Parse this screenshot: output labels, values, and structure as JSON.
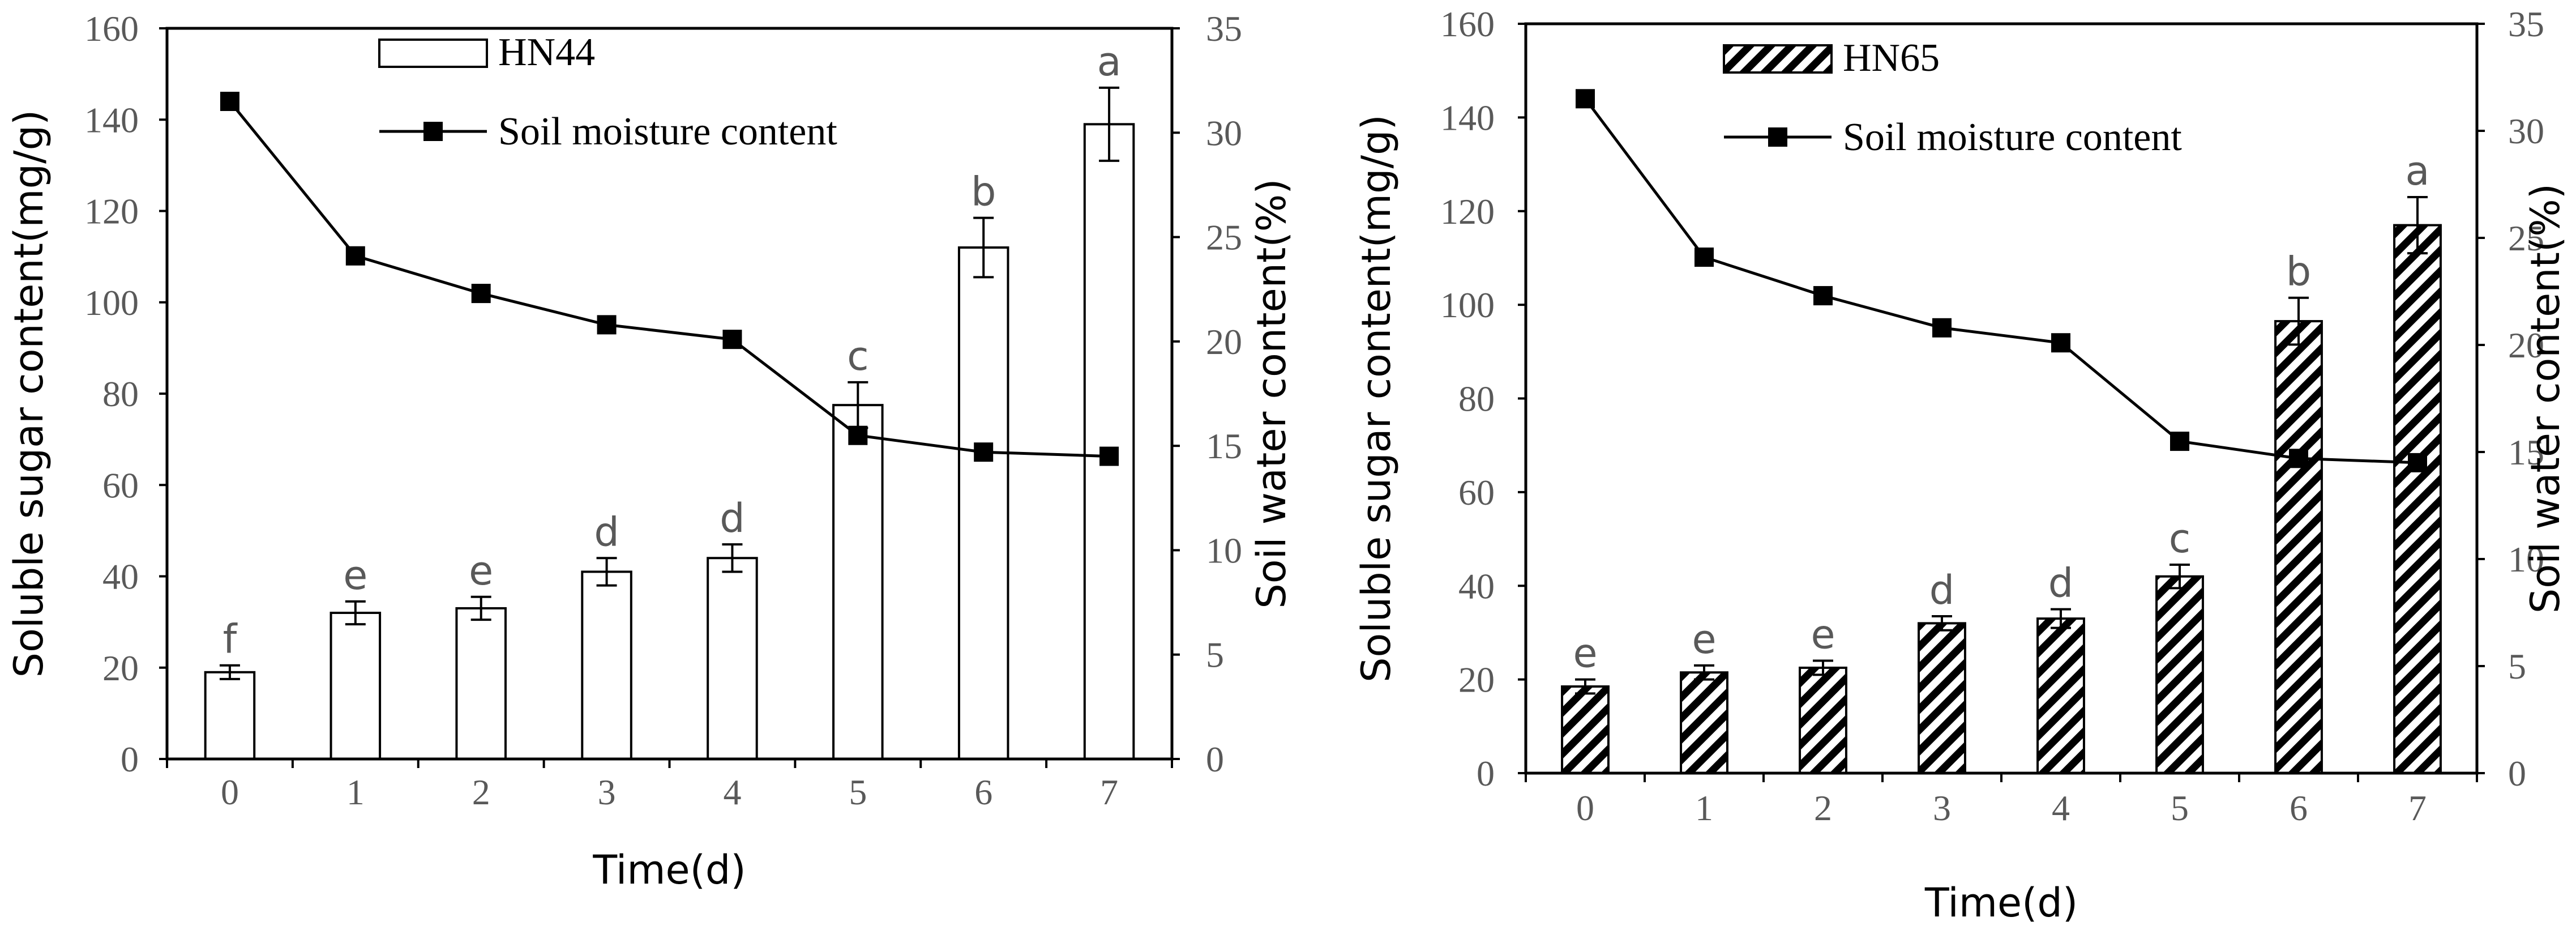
{
  "chart_data": [
    {
      "type": "bar",
      "categories": [
        "0",
        "1",
        "2",
        "3",
        "4",
        "5",
        "6",
        "7"
      ],
      "xlabel": "Time(d)",
      "ylabel": "Soluble sugar content(mg/g)",
      "y2label": "Soil water content(%)",
      "ylim": [
        0,
        160
      ],
      "yticks": [
        "0",
        "20",
        "40",
        "60",
        "80",
        "100",
        "120",
        "140",
        "160"
      ],
      "y2lim": [
        0,
        35
      ],
      "y2ticks": [
        "0",
        "5",
        "10",
        "15",
        "20",
        "25",
        "30",
        "35"
      ],
      "legend_position": "top-left",
      "grid": false,
      "series": [
        {
          "name": "HN44",
          "kind": "bar",
          "fill": "open",
          "axis": "left",
          "values": [
            19,
            32,
            33,
            41,
            44,
            77.5,
            112,
            139
          ],
          "errors": [
            1.5,
            2.5,
            2.5,
            3,
            3,
            5,
            6.5,
            8
          ],
          "letters": [
            "f",
            "e",
            "e",
            "d",
            "d",
            "c",
            "b",
            "a"
          ]
        },
        {
          "name": "Soil moisture content",
          "kind": "line",
          "marker": "square",
          "axis": "right",
          "values": [
            31.5,
            24.1,
            22.3,
            20.8,
            20.1,
            15.5,
            14.7,
            14.5
          ]
        }
      ]
    },
    {
      "type": "bar",
      "categories": [
        "0",
        "1",
        "2",
        "3",
        "4",
        "5",
        "6",
        "7"
      ],
      "xlabel": "Time(d)",
      "ylabel": "Soluble sugar content(mg/g)",
      "y2label": "Soil water content(%)",
      "ylim": [
        0,
        160
      ],
      "yticks": [
        "0",
        "20",
        "40",
        "60",
        "80",
        "100",
        "120",
        "140",
        "160"
      ],
      "y2lim": [
        0,
        35
      ],
      "y2ticks": [
        "0",
        "5",
        "10",
        "15",
        "20",
        "25",
        "30",
        "35"
      ],
      "legend_position": "top-left",
      "grid": false,
      "series": [
        {
          "name": "HN65",
          "kind": "bar",
          "fill": "diagonal-hatch",
          "axis": "left",
          "values": [
            18.5,
            21.5,
            22.5,
            32,
            33,
            42,
            96.5,
            117
          ],
          "errors": [
            1.5,
            1.5,
            1.5,
            1.5,
            2,
            2.5,
            5,
            6
          ],
          "letters": [
            "e",
            "e",
            "e",
            "d",
            "d",
            "c",
            "b",
            "a"
          ]
        },
        {
          "name": "Soil moisture content",
          "kind": "line",
          "marker": "square",
          "axis": "right",
          "values": [
            31.5,
            24.1,
            22.3,
            20.8,
            20.1,
            15.5,
            14.7,
            14.5
          ]
        }
      ]
    }
  ]
}
